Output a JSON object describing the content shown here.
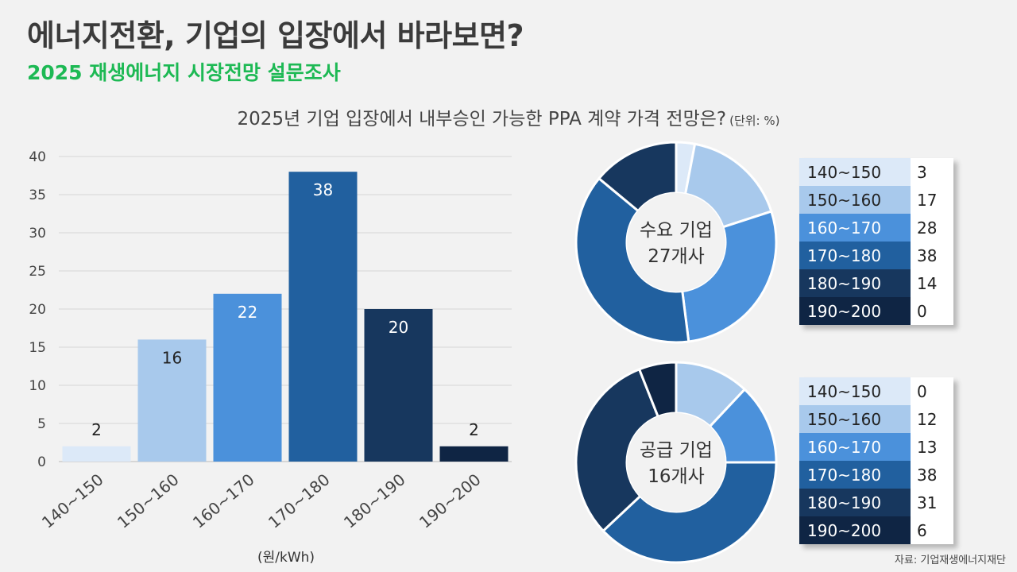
{
  "header": {
    "title": "에너지전환, 기업의 입장에서 바라보면?",
    "subtitle": "2025 재생에너지 시장전망 설문조사",
    "question": "2025년 기업 입장에서 내부승인 가능한 PPA 계약 가격 전망은?",
    "unit": "(단위: %)"
  },
  "source": "자료: 기업재생에너지재단",
  "colors": [
    "#dce9f8",
    "#a8c9ec",
    "#4b91db",
    "#21609f",
    "#17375e",
    "#0f2544"
  ],
  "label_colors": [
    "#222222",
    "#222222",
    "#ffffff",
    "#ffffff",
    "#ffffff",
    "#ffffff"
  ],
  "chart_data": [
    {
      "type": "bar",
      "categories": [
        "140~150",
        "150~160",
        "160~170",
        "170~180",
        "180~190",
        "190~200"
      ],
      "values": [
        2,
        16,
        22,
        38,
        20,
        2
      ],
      "xlabel": "(원/kWh)",
      "ylim": [
        0,
        40
      ],
      "yticks": [
        0,
        5,
        10,
        15,
        20,
        25,
        30,
        35,
        40
      ],
      "grid": true
    },
    {
      "type": "pie",
      "center_label": [
        "수요 기업",
        "27개사"
      ],
      "categories": [
        "140~150",
        "150~160",
        "160~170",
        "170~180",
        "180~190",
        "190~200"
      ],
      "values": [
        3,
        17,
        28,
        38,
        14,
        0
      ]
    },
    {
      "type": "pie",
      "center_label": [
        "공급 기업",
        "16개사"
      ],
      "categories": [
        "140~150",
        "150~160",
        "160~170",
        "170~180",
        "180~190",
        "190~200"
      ],
      "values": [
        0,
        12,
        13,
        38,
        31,
        6
      ]
    }
  ]
}
